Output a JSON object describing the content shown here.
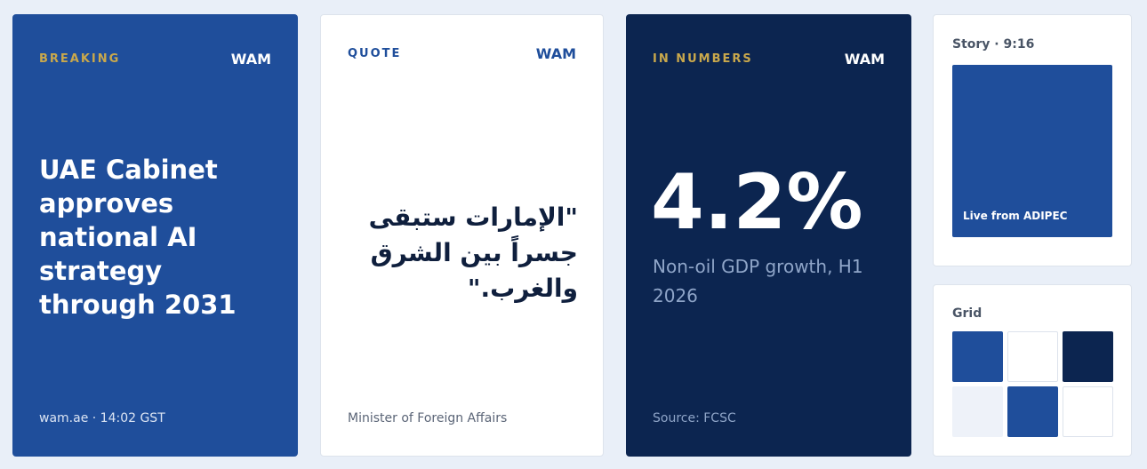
{
  "cards": [
    {
      "label": "BREAKING",
      "brand": "WAM",
      "headline": "UAE Cabinet approves national AI strategy through 2031",
      "footer": "wam.ae · 14:02 GST"
    },
    {
      "label": "QUOTE",
      "brand": "WAM",
      "quote": "\"الإمارات ستبقى جسراً بين الشرق والغرب.\"",
      "footer": "Minister of Foreign Affairs"
    },
    {
      "label": "IN NUMBERS",
      "brand": "WAM",
      "figure": "4.2%",
      "caption": "Non-oil GDP growth, H1 2026",
      "footer": "Source: FCSC"
    }
  ],
  "story": {
    "label": "Story · 9:16",
    "caption": "Live from ADIPEC"
  },
  "grid": {
    "label": "Grid"
  }
}
